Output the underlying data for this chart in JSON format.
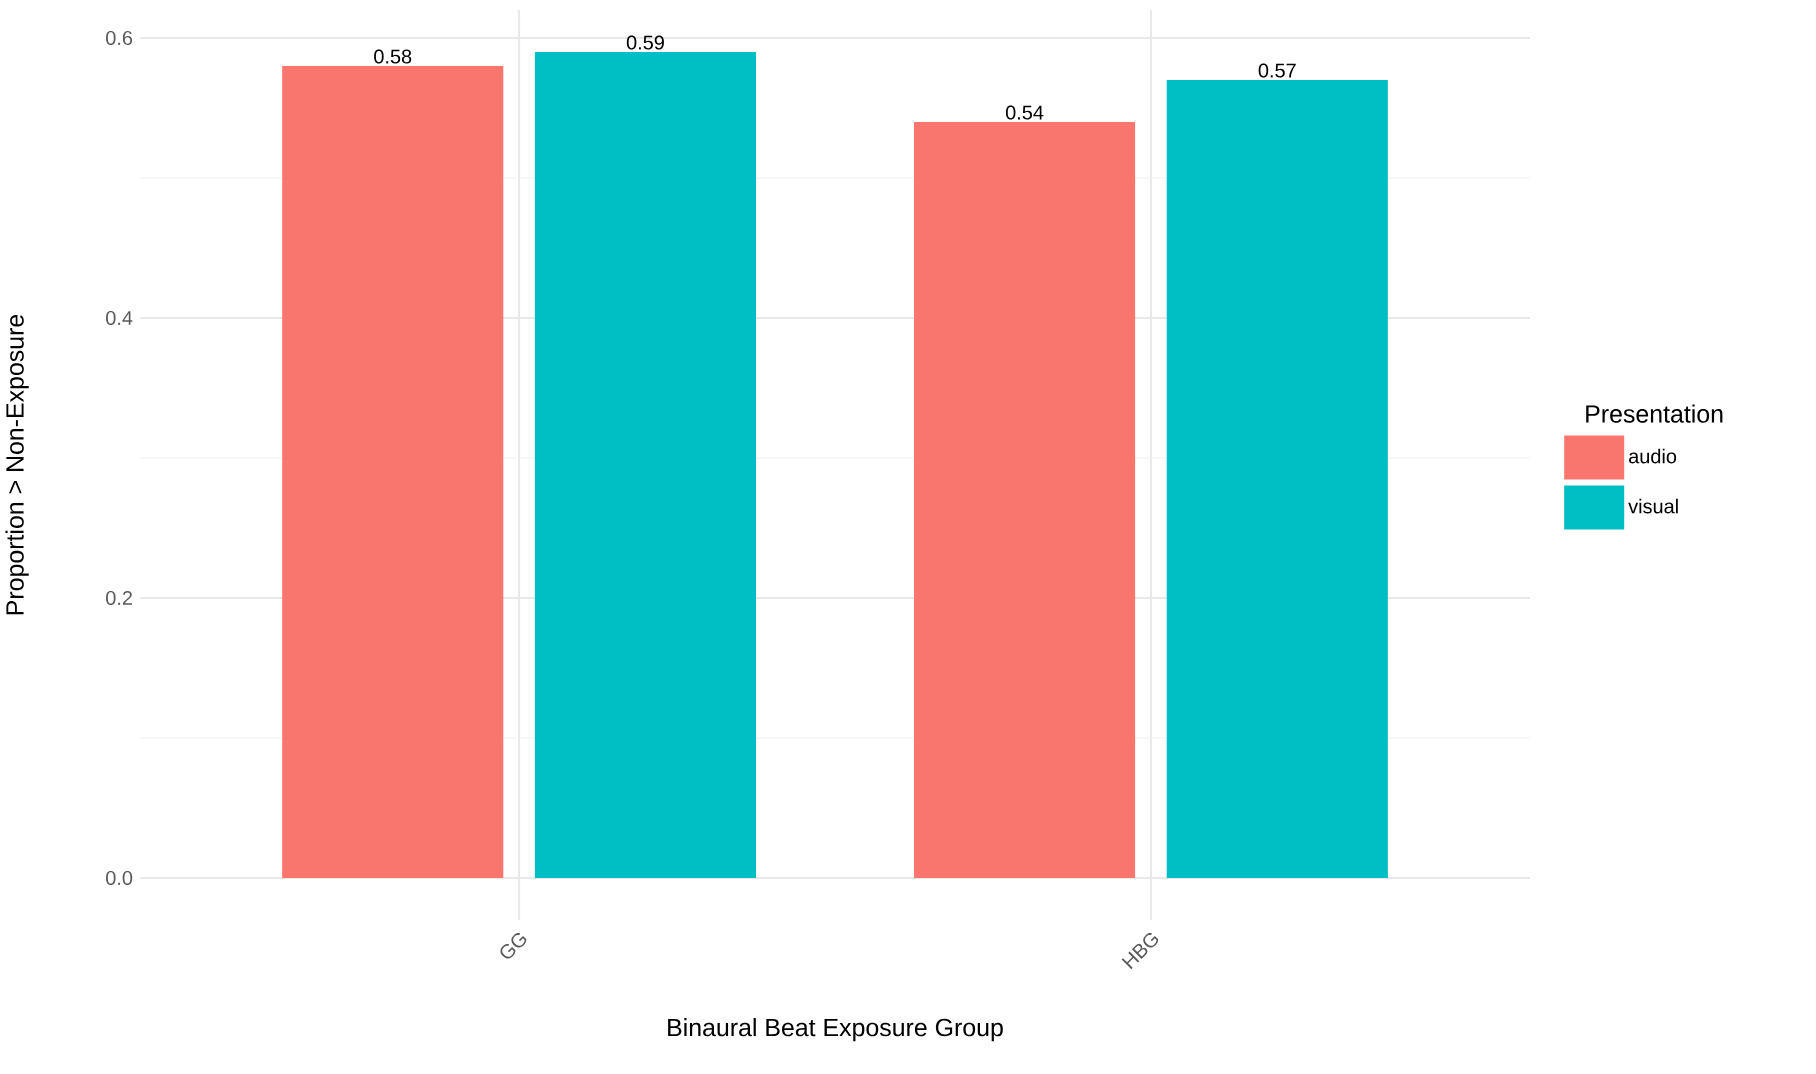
{
  "chart_data": {
    "type": "bar",
    "xlabel": "Binaural Beat Exposure Group",
    "ylabel": "Proportion > Non-Exposure",
    "legend_title": "Presentation",
    "categories": [
      "GG",
      "HBG"
    ],
    "series": [
      {
        "name": "audio",
        "color": "#f8766d",
        "values": [
          0.58,
          0.54
        ]
      },
      {
        "name": "visual",
        "color": "#00bfc4",
        "values": [
          0.59,
          0.57
        ]
      }
    ],
    "ylim": [
      -0.03,
      0.62
    ],
    "yticks": [
      {
        "value": 0,
        "label": "0.0"
      },
      0.2,
      0.4,
      0.6
    ],
    "grid": true,
    "legend": "right",
    "data_labels": true
  }
}
